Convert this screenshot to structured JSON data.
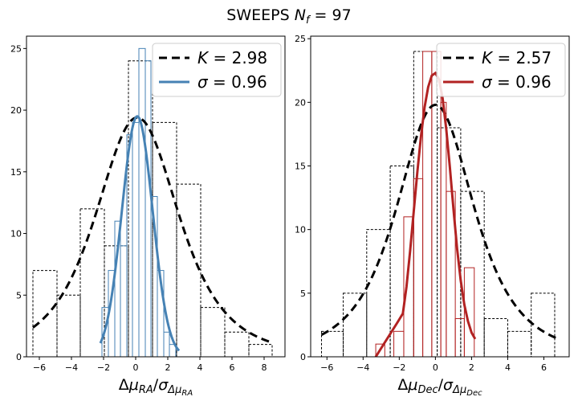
{
  "figure": {
    "title": "SWEEPS   N_f = 97",
    "title_main": "SWEEPS",
    "title_math": "N",
    "title_sub": "f",
    "title_eq": " = 97"
  },
  "chart_data": [
    {
      "type": "histogram",
      "panel": "left",
      "xlabel": "Δμ_RA/σ_Δμ_RA",
      "xlabel_parts": {
        "a": "Δ",
        "b": "μ",
        "c": "RA",
        "d": "/",
        "e": "σ",
        "f": "Δμ",
        "g": "RA"
      },
      "xlim": [
        -6.8,
        9.3
      ],
      "ylim": [
        0,
        26
      ],
      "xticks": [
        -6,
        -4,
        -2,
        0,
        2,
        4,
        6,
        8
      ],
      "yticks": [
        0,
        5,
        10,
        15,
        20,
        25
      ],
      "hist_wide": {
        "color": "#000000",
        "style": "dashed",
        "bins": [
          {
            "x0": -6.4,
            "x1": -4.9,
            "count": 7
          },
          {
            "x0": -4.9,
            "x1": -3.45,
            "count": 5
          },
          {
            "x0": -3.45,
            "x1": -1.95,
            "count": 12
          },
          {
            "x0": -1.95,
            "x1": -0.45,
            "count": 9
          },
          {
            "x0": -0.45,
            "x1": 1.05,
            "count": 24
          },
          {
            "x0": 1.05,
            "x1": 2.55,
            "count": 19
          },
          {
            "x0": 2.55,
            "x1": 4.05,
            "count": 14
          },
          {
            "x0": 4.05,
            "x1": 5.55,
            "count": 4
          },
          {
            "x0": 5.55,
            "x1": 7.05,
            "count": 2
          },
          {
            "x0": 7.05,
            "x1": 8.5,
            "count": 1
          }
        ]
      },
      "hist_narrow": {
        "color": "#4682b4",
        "bins": [
          {
            "x0": -2.1,
            "x1": -1.7,
            "count": 4
          },
          {
            "x0": -1.7,
            "x1": -1.3,
            "count": 7
          },
          {
            "x0": -1.3,
            "x1": -0.95,
            "count": 11
          },
          {
            "x0": -0.95,
            "x1": -0.55,
            "count": 9
          },
          {
            "x0": -0.55,
            "x1": -0.2,
            "count": 18
          },
          {
            "x0": -0.2,
            "x1": 0.2,
            "count": 19
          },
          {
            "x0": 0.2,
            "x1": 0.6,
            "count": 25
          },
          {
            "x0": 0.6,
            "x1": 0.95,
            "count": 24
          },
          {
            "x0": 0.95,
            "x1": 1.35,
            "count": 13
          },
          {
            "x0": 1.35,
            "x1": 1.75,
            "count": 7
          },
          {
            "x0": 1.75,
            "x1": 2.1,
            "count": 2
          },
          {
            "x0": 2.1,
            "x1": 2.5,
            "count": 1
          }
        ]
      },
      "curve_wide": {
        "type": "t",
        "K": 2.98,
        "center": 0.1,
        "peak": 19.4,
        "scale": 2.75,
        "xrange": [
          -6.4,
          8.5
        ],
        "color": "#000000",
        "style": "dashed"
      },
      "curve_narrow": {
        "type": "gauss",
        "sigma": 0.96,
        "center": 0.1,
        "peak": 19.5,
        "xrange": [
          -2.2,
          2.7
        ],
        "color": "#4682b4"
      },
      "legend": {
        "placement": "upper-right",
        "entries": [
          {
            "sym": "K",
            "eq": " = 2.98",
            "color": "#000000",
            "style": "dashed"
          },
          {
            "sym": "σ",
            "eq": " = 0.96",
            "color": "#4682b4",
            "style": "solid"
          }
        ]
      }
    },
    {
      "type": "histogram",
      "panel": "right",
      "xlabel": "Δμ_Dec/σ_Δμ_Dec",
      "xlabel_parts": {
        "a": "Δ",
        "b": "μ",
        "c": "Dec",
        "d": "/",
        "e": "σ",
        "f": "Δμ",
        "g": "Dec"
      },
      "xlim": [
        -6.9,
        7.4
      ],
      "ylim": [
        0,
        25.2
      ],
      "xticks": [
        -6,
        -4,
        -2,
        0,
        2,
        4,
        6
      ],
      "yticks": [
        0,
        5,
        10,
        15,
        20,
        25
      ],
      "hist_wide": {
        "color": "#000000",
        "style": "dashed",
        "bins": [
          {
            "x0": -6.3,
            "x1": -5.1,
            "count": 2
          },
          {
            "x0": -5.1,
            "x1": -3.8,
            "count": 5
          },
          {
            "x0": -3.8,
            "x1": -2.5,
            "count": 10
          },
          {
            "x0": -2.5,
            "x1": -1.2,
            "count": 15
          },
          {
            "x0": -1.2,
            "x1": 0.1,
            "count": 24
          },
          {
            "x0": 0.1,
            "x1": 1.4,
            "count": 18
          },
          {
            "x0": 1.4,
            "x1": 2.7,
            "count": 13
          },
          {
            "x0": 2.7,
            "x1": 4.0,
            "count": 3
          },
          {
            "x0": 4.0,
            "x1": 5.3,
            "count": 2
          },
          {
            "x0": 5.3,
            "x1": 6.6,
            "count": 5
          }
        ]
      },
      "hist_narrow": {
        "color": "#b22222",
        "bins": [
          {
            "x0": -3.3,
            "x1": -2.8,
            "count": 1
          },
          {
            "x0": -2.8,
            "x1": -2.3,
            "count": 0
          },
          {
            "x0": -2.3,
            "x1": -1.75,
            "count": 2
          },
          {
            "x0": -1.75,
            "x1": -1.2,
            "count": 11
          },
          {
            "x0": -1.2,
            "x1": -0.7,
            "count": 14
          },
          {
            "x0": -0.7,
            "x1": -0.2,
            "count": 24
          },
          {
            "x0": -0.2,
            "x1": 0.3,
            "count": 24
          },
          {
            "x0": 0.3,
            "x1": 0.6,
            "count": 20
          },
          {
            "x0": 0.6,
            "x1": 1.1,
            "count": 13
          },
          {
            "x0": 1.1,
            "x1": 1.6,
            "count": 3
          },
          {
            "x0": 1.6,
            "x1": 2.15,
            "count": 7
          }
        ]
      },
      "curve_wide": {
        "type": "t",
        "K": 2.57,
        "center": 0.0,
        "peak": 19.8,
        "scale": 2.3,
        "xrange": [
          -6.3,
          6.9
        ],
        "color": "#000000",
        "style": "dashed"
      },
      "curve_narrow": {
        "type": "gauss",
        "sigma": 0.96,
        "center": 0.0,
        "peak": 22.3,
        "xrange": [
          -3.3,
          2.2
        ],
        "color": "#b22222",
        "points": [
          [
            -3.3,
            0
          ],
          [
            -2.9,
            0.9
          ],
          [
            -2.5,
            1.8
          ],
          [
            -2.1,
            2.7
          ],
          [
            -1.8,
            3.4
          ],
          [
            -1.6,
            5.5
          ],
          [
            -1.4,
            8.3
          ],
          [
            -1.2,
            11.4
          ],
          [
            -1.0,
            14.5
          ],
          [
            -0.8,
            17.3
          ],
          [
            -0.6,
            19.6
          ],
          [
            -0.4,
            21.2
          ],
          [
            -0.2,
            22.1
          ],
          [
            0.0,
            22.3
          ],
          [
            0.2,
            21.8
          ],
          [
            0.4,
            20.3
          ],
          [
            0.6,
            17.9
          ],
          [
            0.8,
            14.9
          ],
          [
            1.0,
            11.6
          ],
          [
            1.2,
            8.5
          ],
          [
            1.4,
            6.0
          ],
          [
            1.6,
            4.1
          ],
          [
            1.8,
            2.8
          ],
          [
            2.0,
            1.9
          ],
          [
            2.2,
            1.4
          ]
        ]
      },
      "legend": {
        "placement": "upper-right",
        "entries": [
          {
            "sym": "K",
            "eq": " = 2.57",
            "color": "#000000",
            "style": "dashed"
          },
          {
            "sym": "σ",
            "eq": " = 0.96",
            "color": "#b22222",
            "style": "solid"
          }
        ]
      }
    }
  ]
}
